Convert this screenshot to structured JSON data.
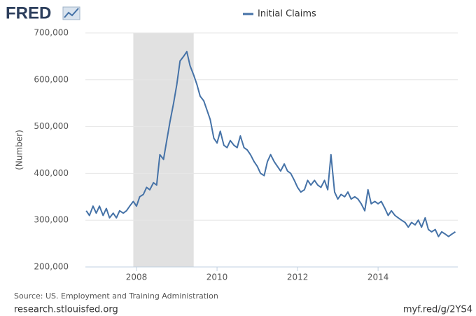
{
  "chart_data": {
    "type": "line",
    "logo": "FRED",
    "y_label": "(Number)",
    "source": "Source: US. Employment and Training Administration",
    "footer_left": "research.stlouisfed.org",
    "footer_right": "myf.red/g/2YS4",
    "xlim": [
      2006.73,
      2015.98
    ],
    "xticks": [
      2008,
      2010,
      2012,
      2014
    ],
    "ylim": [
      200000,
      700000
    ],
    "yticks": [
      {
        "value": 200000,
        "label": "200,000"
      },
      {
        "value": 300000,
        "label": "300,000"
      },
      {
        "value": 400000,
        "label": "400,000"
      },
      {
        "value": 500000,
        "label": "500,000"
      },
      {
        "value": 600000,
        "label": "600,000"
      },
      {
        "value": 700000,
        "label": "700,000"
      }
    ],
    "grid": true,
    "recessions": [
      [
        2007.92,
        2009.42
      ]
    ],
    "recession_color": "#e1e1e1",
    "x": [
      2006.75,
      2006.83,
      2006.92,
      2007.0,
      2007.08,
      2007.17,
      2007.25,
      2007.33,
      2007.42,
      2007.5,
      2007.58,
      2007.67,
      2007.75,
      2007.83,
      2007.92,
      2008.0,
      2008.08,
      2008.17,
      2008.25,
      2008.33,
      2008.42,
      2008.5,
      2008.58,
      2008.67,
      2008.75,
      2008.83,
      2008.92,
      2009.0,
      2009.08,
      2009.17,
      2009.25,
      2009.33,
      2009.42,
      2009.5,
      2009.58,
      2009.67,
      2009.75,
      2009.83,
      2009.92,
      2010.0,
      2010.08,
      2010.17,
      2010.25,
      2010.33,
      2010.42,
      2010.5,
      2010.58,
      2010.67,
      2010.75,
      2010.83,
      2010.92,
      2011.0,
      2011.08,
      2011.17,
      2011.25,
      2011.33,
      2011.42,
      2011.5,
      2011.58,
      2011.67,
      2011.75,
      2011.83,
      2011.92,
      2012.0,
      2012.08,
      2012.17,
      2012.25,
      2012.33,
      2012.42,
      2012.5,
      2012.58,
      2012.67,
      2012.75,
      2012.83,
      2012.92,
      2013.0,
      2013.08,
      2013.17,
      2013.25,
      2013.33,
      2013.42,
      2013.5,
      2013.58,
      2013.67,
      2013.75,
      2013.83,
      2013.92,
      2014.0,
      2014.08,
      2014.17,
      2014.25,
      2014.33,
      2014.42,
      2014.5,
      2014.58,
      2014.67,
      2014.75,
      2014.83,
      2014.92,
      2015.0,
      2015.08,
      2015.17,
      2015.25,
      2015.33,
      2015.42,
      2015.5,
      2015.58,
      2015.67,
      2015.75,
      2015.83,
      2015.92
    ],
    "series": [
      {
        "name": "Initial Claims",
        "color": "#4572a7",
        "values": [
          320000,
          310000,
          330000,
          315000,
          330000,
          310000,
          325000,
          305000,
          315000,
          305000,
          320000,
          315000,
          320000,
          330000,
          340000,
          330000,
          350000,
          355000,
          370000,
          365000,
          380000,
          375000,
          440000,
          430000,
          470000,
          510000,
          550000,
          590000,
          640000,
          650000,
          660000,
          630000,
          610000,
          590000,
          565000,
          555000,
          535000,
          515000,
          475000,
          465000,
          490000,
          460000,
          455000,
          470000,
          460000,
          455000,
          480000,
          455000,
          450000,
          440000,
          425000,
          415000,
          400000,
          395000,
          425000,
          440000,
          425000,
          415000,
          405000,
          420000,
          405000,
          400000,
          385000,
          370000,
          360000,
          365000,
          385000,
          375000,
          385000,
          375000,
          370000,
          385000,
          365000,
          440000,
          360000,
          345000,
          355000,
          350000,
          360000,
          345000,
          350000,
          345000,
          335000,
          320000,
          365000,
          335000,
          340000,
          335000,
          340000,
          325000,
          310000,
          320000,
          310000,
          305000,
          300000,
          295000,
          285000,
          295000,
          290000,
          300000,
          285000,
          305000,
          280000,
          275000,
          280000,
          265000,
          275000,
          270000,
          265000,
          270000,
          275000
        ]
      }
    ]
  }
}
